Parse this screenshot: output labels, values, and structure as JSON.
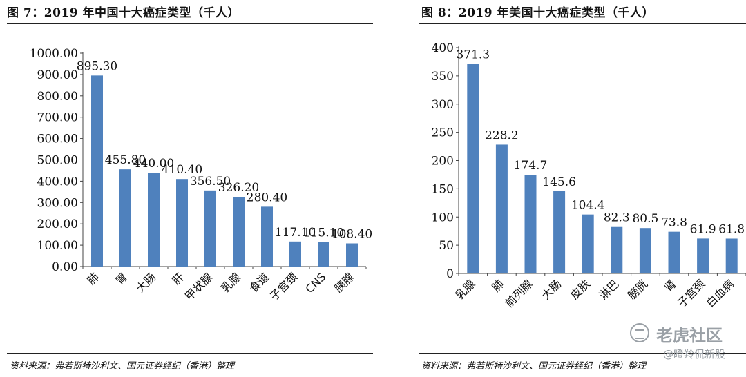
{
  "figures": [
    {
      "title": "图 7：2019 年中国十大癌症类型（千人）",
      "source": "资料来源：弗若斯特沙利文、国元证券经纪（香港）整理"
    },
    {
      "title": "图 8：2019 年美国十大癌症类型（千人）",
      "source": "资料来源：弗若斯特沙利文、国元证券经纪（香港）整理"
    }
  ],
  "chart_data": [
    {
      "type": "bar",
      "categories": [
        "肺",
        "胃",
        "大肠",
        "肝",
        "甲状腺",
        "乳腺",
        "食道",
        "子宫颈",
        "CNS",
        "胰腺"
      ],
      "values": [
        895.3,
        455.8,
        440.0,
        410.4,
        356.5,
        326.2,
        280.4,
        117.1,
        115.1,
        108.4
      ],
      "labels": [
        "895.30",
        "455.80",
        "440.00",
        "410.40",
        "356.50",
        "326.20",
        "280.40",
        "117.10",
        "115.10",
        "108.40"
      ],
      "yticks": [
        "0.00",
        "100.00",
        "200.00",
        "300.00",
        "400.00",
        "500.00",
        "600.00",
        "700.00",
        "800.00",
        "900.00",
        "1000.00"
      ],
      "ylim": [
        0,
        1000
      ],
      "grid": false,
      "legend": "none",
      "color": "#4f81bd"
    },
    {
      "type": "bar",
      "categories": [
        "乳腺",
        "肺",
        "前列腺",
        "大肠",
        "皮肤",
        "淋巴",
        "膀胱",
        "肾",
        "子宫颈",
        "白血病"
      ],
      "values": [
        371.3,
        228.2,
        174.7,
        145.6,
        104.4,
        82.3,
        80.5,
        73.8,
        61.9,
        61.8
      ],
      "labels": [
        "371.3",
        "228.2",
        "174.7",
        "145.6",
        "104.4",
        "82.3",
        "80.5",
        "73.8",
        "61.9",
        "61.8"
      ],
      "yticks": [
        "0",
        "50",
        "100",
        "150",
        "200",
        "250",
        "300",
        "350",
        "400"
      ],
      "ylim": [
        0,
        400
      ],
      "grid": false,
      "legend": "none",
      "color": "#4f81bd"
    }
  ],
  "watermark": {
    "icon": "tiger-logo-icon",
    "main": "老虎社区",
    "sub": "@瞪羚侃新股"
  }
}
